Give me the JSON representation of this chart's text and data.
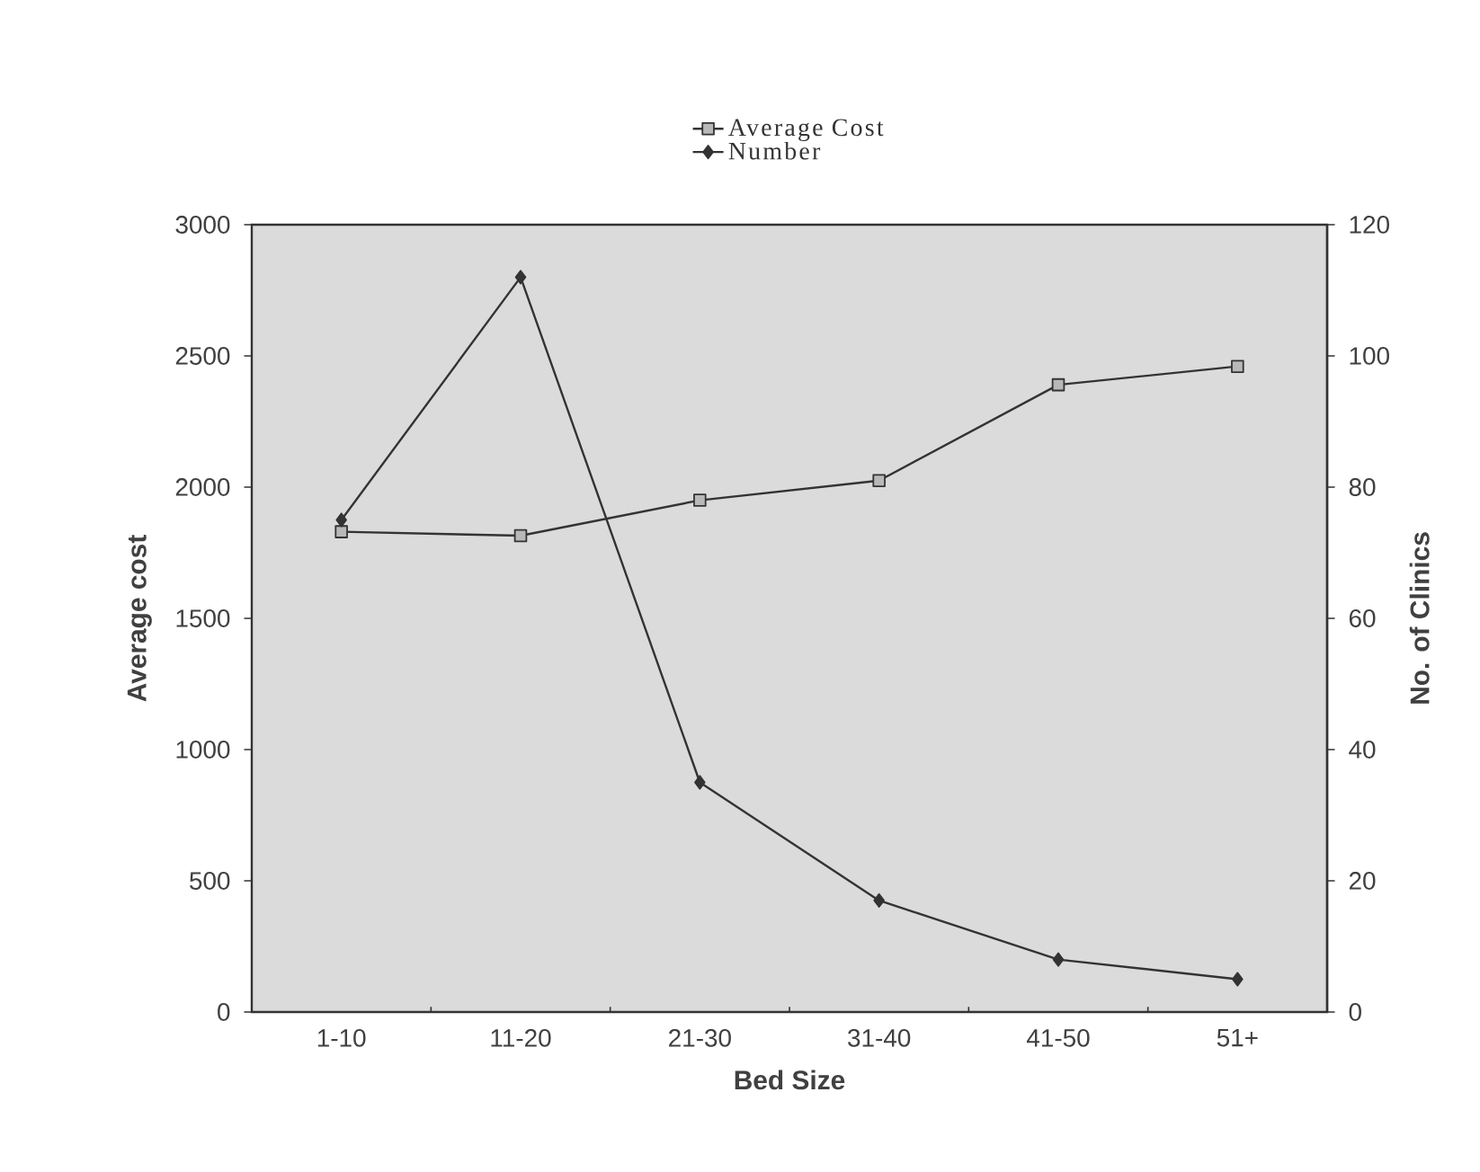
{
  "chart_data": {
    "type": "line",
    "xlabel": "Bed Size",
    "ylabel": "Average cost",
    "y2label": "No. of Clinics",
    "categories": [
      "1-10",
      "11-20",
      "21-30",
      "31-40",
      "41-50",
      "51+"
    ],
    "series": [
      {
        "name": "Average Cost",
        "color": "#333333",
        "marker": "square",
        "axis": "y",
        "values": [
          1830,
          1815,
          1950,
          2025,
          2390,
          2460
        ]
      },
      {
        "name": "Number",
        "color": "#333333",
        "marker": "diamond",
        "axis": "y2",
        "values": [
          75,
          112,
          35,
          17,
          8,
          5
        ]
      }
    ],
    "ylim": [
      0,
      3000
    ],
    "yticks": [
      0,
      500,
      1000,
      1500,
      2000,
      2500,
      3000
    ],
    "y2lim": [
      0,
      120
    ],
    "y2ticks": [
      0,
      20,
      40,
      60,
      80,
      100,
      120
    ],
    "legend": "top",
    "grid": false
  }
}
